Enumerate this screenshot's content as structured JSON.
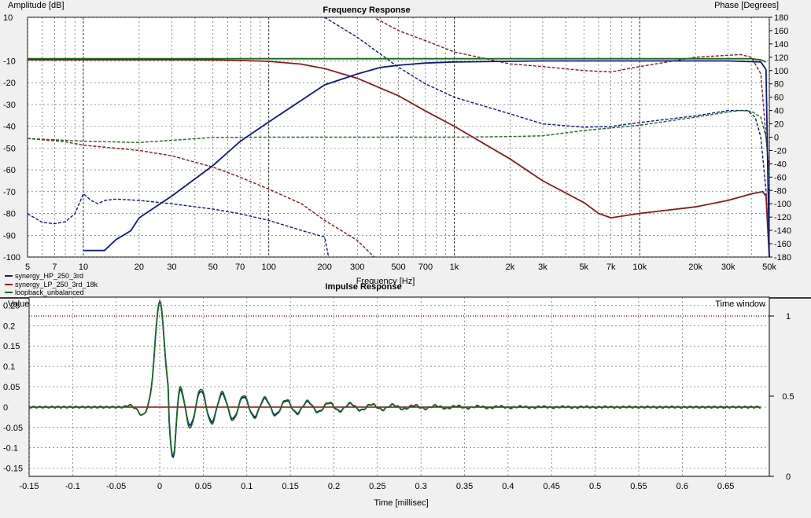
{
  "chart_data": [
    {
      "type": "line",
      "title": "Frequency Response",
      "xlabel": "Frequency [Hz]",
      "ylabel": "Amplitude [dB]",
      "y2label": "Phase [Degrees]",
      "x_scale": "log",
      "xlim": [
        5,
        50000
      ],
      "ylim": [
        -100,
        10
      ],
      "y2lim": [
        -180,
        180
      ],
      "grid": true,
      "legend_position": "bottom-left",
      "xticks": [
        5,
        7,
        10,
        20,
        30,
        50,
        70,
        100,
        200,
        300,
        500,
        700,
        1000,
        2000,
        3000,
        5000,
        7000,
        10000,
        20000,
        30000,
        50000
      ],
      "xtick_labels": [
        "5",
        "7",
        "10",
        "20",
        "30",
        "50",
        "70",
        "100",
        "200",
        "300",
        "500",
        "700",
        "1k",
        "2k",
        "3k",
        "5k",
        "7k",
        "10k",
        "20k",
        "30k",
        "50k"
      ],
      "yticks": [
        10,
        -10,
        -20,
        -30,
        -40,
        -50,
        -60,
        -70,
        -80,
        -90,
        -100
      ],
      "ytick_labels": [
        "10",
        "-10",
        "-20",
        "-30",
        "-40",
        "-50",
        "-60",
        "-70",
        "-80",
        "-90",
        "-100"
      ],
      "y2ticks": [
        180,
        160,
        140,
        120,
        100,
        80,
        60,
        40,
        20,
        0,
        -20,
        -40,
        -60,
        -80,
        -100,
        -120,
        -140,
        -160,
        -180
      ],
      "series": [
        {
          "name": "synergy_HP_250_3rd",
          "color": "#0b1a8c",
          "amplitude": [
            [
              10,
              -97
            ],
            [
              13,
              -97
            ],
            [
              15,
              -92
            ],
            [
              18,
              -88
            ],
            [
              20,
              -82
            ],
            [
              30,
              -72
            ],
            [
              50,
              -58
            ],
            [
              70,
              -47
            ],
            [
              100,
              -38
            ],
            [
              200,
              -21
            ],
            [
              300,
              -16
            ],
            [
              400,
              -13
            ],
            [
              500,
              -12
            ],
            [
              700,
              -11
            ],
            [
              1000,
              -10.5
            ],
            [
              3000,
              -10
            ],
            [
              10000,
              -10
            ],
            [
              30000,
              -10
            ],
            [
              45000,
              -10.5
            ],
            [
              48000,
              -14
            ],
            [
              50000,
              -100
            ]
          ],
          "phase": [
            [
              5,
              -115
            ],
            [
              6,
              -128
            ],
            [
              7,
              -130
            ],
            [
              8,
              -127
            ],
            [
              9,
              -115
            ],
            [
              10,
              -85
            ],
            [
              11,
              -95
            ],
            [
              12,
              -100
            ],
            [
              13,
              -95
            ],
            [
              15,
              -93
            ],
            [
              20,
              -95
            ],
            [
              30,
              -100
            ],
            [
              50,
              -108
            ],
            [
              70,
              -115
            ],
            [
              100,
              -125
            ],
            [
              150,
              -140
            ],
            [
              200,
              -150
            ],
            [
              210,
              -180
            ]
          ],
          "phase_2": [
            [
              200,
              180
            ],
            [
              300,
              150
            ],
            [
              500,
              105
            ],
            [
              700,
              80
            ],
            [
              1000,
              60
            ],
            [
              2000,
              35
            ],
            [
              3000,
              20
            ],
            [
              5000,
              15
            ],
            [
              7000,
              16
            ],
            [
              10000,
              22
            ],
            [
              20000,
              32
            ],
            [
              30000,
              40
            ],
            [
              38000,
              40
            ],
            [
              42000,
              30
            ],
            [
              45000,
              0
            ],
            [
              48000,
              -80
            ],
            [
              50000,
              -180
            ]
          ]
        },
        {
          "name": "synergy_LP_250_3rd_18k",
          "color": "#8b1a1a",
          "amplitude": [
            [
              5,
              -9.5
            ],
            [
              30,
              -9.5
            ],
            [
              50,
              -9.6
            ],
            [
              70,
              -9.8
            ],
            [
              100,
              -10.2
            ],
            [
              150,
              -11.5
            ],
            [
              200,
              -13.5
            ],
            [
              300,
              -18
            ],
            [
              500,
              -26
            ],
            [
              700,
              -33
            ],
            [
              1000,
              -40
            ],
            [
              2000,
              -55
            ],
            [
              3000,
              -65
            ],
            [
              5000,
              -75
            ],
            [
              6000,
              -80
            ],
            [
              7000,
              -82
            ],
            [
              10000,
              -80
            ],
            [
              20000,
              -77
            ],
            [
              30000,
              -74
            ],
            [
              40000,
              -71
            ],
            [
              46000,
              -70
            ],
            [
              48000,
              -72
            ],
            [
              50000,
              -100
            ]
          ],
          "phase": [
            [
              5,
              -2
            ],
            [
              8,
              -7
            ],
            [
              10,
              -12
            ],
            [
              20,
              -20
            ],
            [
              30,
              -28
            ],
            [
              50,
              -45
            ],
            [
              70,
              -60
            ],
            [
              100,
              -78
            ],
            [
              150,
              -100
            ],
            [
              200,
              -125
            ],
            [
              300,
              -155
            ],
            [
              370,
              -180
            ]
          ],
          "phase_2": [
            [
              380,
              178
            ],
            [
              500,
              160
            ],
            [
              700,
              145
            ],
            [
              1000,
              128
            ],
            [
              2000,
              110
            ],
            [
              3000,
              106
            ],
            [
              5000,
              100
            ],
            [
              7000,
              98
            ],
            [
              10000,
              106
            ],
            [
              20000,
              120
            ],
            [
              30000,
              123
            ],
            [
              35000,
              124
            ],
            [
              40000,
              120
            ],
            [
              45000,
              95
            ],
            [
              48000,
              0
            ],
            [
              50000,
              -50
            ]
          ]
        },
        {
          "name": "loopback_unbalanced",
          "color": "#1a6b1a",
          "amplitude": [
            [
              5,
              -9
            ],
            [
              100,
              -9
            ],
            [
              1000,
              -9
            ],
            [
              10000,
              -9
            ],
            [
              40000,
              -9
            ],
            [
              45000,
              -9.5
            ],
            [
              48000,
              -10.5
            ]
          ],
          "phase": [
            [
              5,
              -2
            ],
            [
              10,
              -6
            ],
            [
              20,
              -8
            ],
            [
              50,
              -0.5
            ],
            [
              100,
              0
            ],
            [
              200,
              0
            ],
            [
              300,
              0
            ],
            [
              500,
              0
            ],
            [
              1000,
              0
            ],
            [
              2000,
              1
            ],
            [
              3000,
              2
            ],
            [
              5000,
              10
            ],
            [
              10000,
              18
            ],
            [
              20000,
              30
            ],
            [
              30000,
              38
            ],
            [
              35000,
              40
            ],
            [
              40000,
              39
            ],
            [
              45000,
              30
            ],
            [
              48000,
              0
            ],
            [
              50000,
              -60
            ]
          ]
        }
      ]
    },
    {
      "type": "line",
      "title": "Impulse Response",
      "xlabel": "Time [millisec]",
      "ylabel": "Value",
      "y2label": "Time window",
      "xlim": [
        -0.15,
        0.7
      ],
      "ylim": [
        -0.17,
        0.27
      ],
      "y2lim": [
        0,
        1
      ],
      "grid": true,
      "xticks": [
        -0.15,
        -0.1,
        -0.05,
        0,
        0.05,
        0.1,
        0.15,
        0.2,
        0.25,
        0.3,
        0.35,
        0.4,
        0.45,
        0.5,
        0.55,
        0.6,
        0.65
      ],
      "xtick_labels": [
        "-0.15",
        "-0.1",
        "-0.05",
        "0",
        "0.05",
        "0.1",
        "0.15",
        "0.2",
        "0.25",
        "0.3",
        "0.35",
        "0.4",
        "0.45",
        "0.5",
        "0.55",
        "0.6",
        "0.65"
      ],
      "yticks": [
        0.25,
        0.2,
        0.15,
        0.1,
        0.05,
        0,
        -0.05,
        -0.1,
        -0.15
      ],
      "ytick_labels": [
        "0.25",
        "0.2",
        "0.15",
        "0.1",
        "0.05",
        "0",
        "-0.05",
        "-0.1",
        "-0.15"
      ],
      "y2ticks": [
        1,
        0.5,
        0
      ],
      "y2tick_labels": [
        "1",
        "0.5",
        "0"
      ],
      "series": [
        {
          "name": "synergy_HP_250_3rd",
          "color": "#0b1a8c",
          "peak": 0.26,
          "trough": -0.13
        },
        {
          "name": "synergy_LP_250_3rd_18k",
          "color": "#8b1a1a",
          "value": 0.0
        },
        {
          "name": "loopback_unbalanced",
          "color": "#1a6b1a",
          "peak": 0.26,
          "trough": -0.125
        }
      ],
      "time_window": 1
    }
  ]
}
